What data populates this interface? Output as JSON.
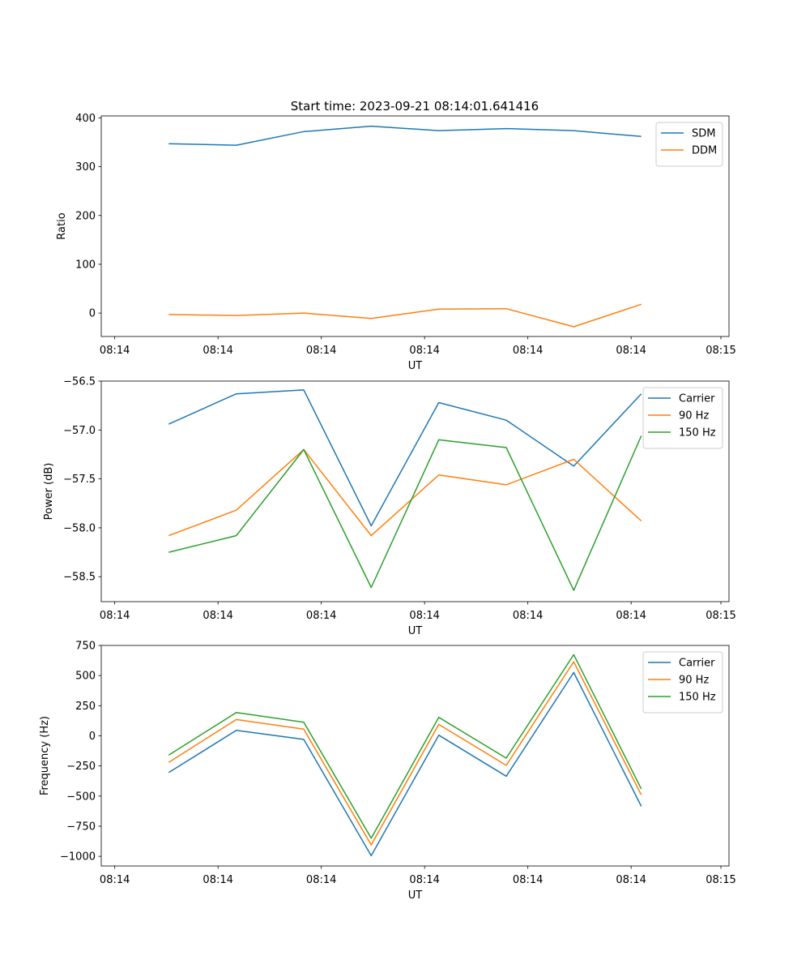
{
  "figure": {
    "title": "Start time: 2023-09-21 08:14:01.641416"
  },
  "colors": {
    "blue": "#1f77b4",
    "orange": "#ff7f0e",
    "green": "#2ca02c"
  },
  "chart_data": [
    {
      "type": "line",
      "title": "Start time: 2023-09-21 08:14:01.641416",
      "xlabel": "UT",
      "ylabel": "Ratio",
      "x": [
        1,
        2,
        3,
        4,
        5,
        6,
        7,
        8
      ],
      "xlim": [
        0,
        9.3
      ],
      "xtick_positions": [
        0.2,
        1.73,
        3.26,
        4.79,
        6.32,
        7.85,
        9.18
      ],
      "xtick_labels": [
        "08:14",
        "08:14",
        "08:14",
        "08:14",
        "08:14",
        "08:14",
        "08:15"
      ],
      "ylim": [
        -48,
        404
      ],
      "yticks": [
        0,
        100,
        200,
        300,
        400
      ],
      "ytick_labels": [
        "0",
        "100",
        "200",
        "300",
        "400"
      ],
      "grid": false,
      "legend": "upper right",
      "series": [
        {
          "name": "SDM",
          "color": "#1f77b4",
          "values": [
            347,
            344,
            372,
            383,
            374,
            378,
            374,
            362
          ]
        },
        {
          "name": "DDM",
          "color": "#ff7f0e",
          "values": [
            -3,
            -5,
            0,
            -11,
            8,
            9,
            -28,
            18
          ]
        }
      ]
    },
    {
      "type": "line",
      "title": "",
      "xlabel": "UT",
      "ylabel": "Power (dB)",
      "x": [
        1,
        2,
        3,
        4,
        5,
        6,
        7,
        8
      ],
      "xlim": [
        0,
        9.3
      ],
      "xtick_positions": [
        0.2,
        1.73,
        3.26,
        4.79,
        6.32,
        7.85,
        9.18
      ],
      "xtick_labels": [
        "08:14",
        "08:14",
        "08:14",
        "08:14",
        "08:14",
        "08:14",
        "08:15"
      ],
      "ylim": [
        -58.755,
        -56.5
      ],
      "yticks": [
        -58.5,
        -58.0,
        -57.5,
        -57.0,
        -56.5
      ],
      "ytick_labels": [
        "−58.5",
        "−58.0",
        "−57.5",
        "−57.0",
        "−56.5"
      ],
      "grid": false,
      "legend": "upper right",
      "series": [
        {
          "name": "Carrier",
          "color": "#1f77b4",
          "values": [
            -56.94,
            -56.63,
            -56.59,
            -57.98,
            -56.72,
            -56.9,
            -57.37,
            -56.63
          ]
        },
        {
          "name": "90 Hz",
          "color": "#ff7f0e",
          "values": [
            -58.08,
            -57.82,
            -57.2,
            -58.08,
            -57.46,
            -57.56,
            -57.3,
            -57.93
          ]
        },
        {
          "name": "150 Hz",
          "color": "#2ca02c",
          "values": [
            -58.25,
            -58.08,
            -57.2,
            -58.61,
            -57.1,
            -57.18,
            -58.64,
            -57.06
          ]
        }
      ]
    },
    {
      "type": "line",
      "title": "",
      "xlabel": "UT",
      "ylabel": "Frequency (Hz)",
      "x": [
        1,
        2,
        3,
        4,
        5,
        6,
        7,
        8
      ],
      "xlim": [
        0,
        9.3
      ],
      "xtick_positions": [
        0.2,
        1.73,
        3.26,
        4.79,
        6.32,
        7.85,
        9.18
      ],
      "xtick_labels": [
        "08:14",
        "08:14",
        "08:14",
        "08:14",
        "08:14",
        "08:14",
        "08:15"
      ],
      "ylim": [
        -1080,
        750
      ],
      "yticks": [
        -1000,
        -750,
        -500,
        -250,
        0,
        250,
        500,
        750
      ],
      "ytick_labels": [
        "−1000",
        "−750",
        "−500",
        "−250",
        "0",
        "250",
        "500",
        "750"
      ],
      "grid": false,
      "legend": "upper right",
      "series": [
        {
          "name": "Carrier",
          "color": "#1f77b4",
          "values": [
            -305,
            45,
            -30,
            -995,
            5,
            -335,
            525,
            -585
          ]
        },
        {
          "name": "90 Hz",
          "color": "#ff7f0e",
          "values": [
            -220,
            135,
            55,
            -905,
            95,
            -245,
            615,
            -490
          ]
        },
        {
          "name": "150 Hz",
          "color": "#2ca02c",
          "values": [
            -160,
            193,
            113,
            -850,
            153,
            -185,
            673,
            -440
          ]
        }
      ]
    }
  ]
}
